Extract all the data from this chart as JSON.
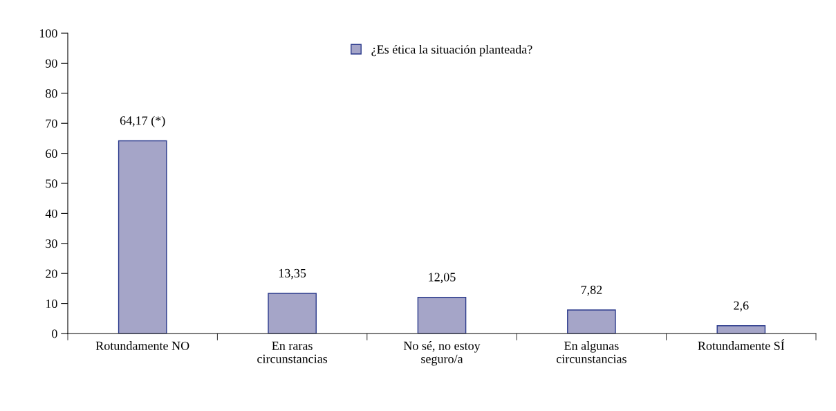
{
  "chart_data": {
    "type": "bar",
    "categories": [
      "Rotundamente NO",
      "En raras\ncircunstancias",
      "No sé, no estoy\nseguro/a",
      "En algunas\ncircunstancias",
      "Rotundamente SÍ"
    ],
    "series": [
      {
        "name": "¿Es ética la situación planteada?",
        "color": "#a5a5c8",
        "values": [
          64.17,
          13.35,
          12.05,
          7.82,
          2.6
        ],
        "value_labels": [
          "64,17 (*)",
          "13,35",
          "12,05",
          "7,82",
          "2,6"
        ]
      }
    ],
    "ylim": [
      0,
      100
    ],
    "yticks": [
      0,
      10,
      20,
      30,
      40,
      50,
      60,
      70,
      80,
      90,
      100
    ],
    "grid": false,
    "legend": "top"
  }
}
